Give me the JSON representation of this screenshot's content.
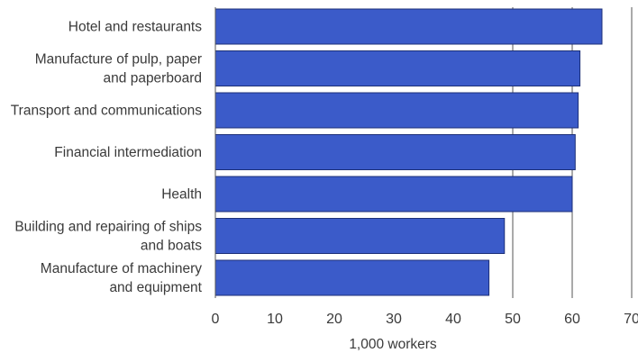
{
  "chart_data": {
    "type": "bar",
    "orientation": "horizontal",
    "categories": [
      "Hotel and restaurants",
      "Manufacture of pulp, paper and paperboard",
      "Transport and communications",
      "Financial intermediation",
      "Health",
      "Building and repairing of ships and boats",
      "Manufacture of machinery and equipment"
    ],
    "category_lines": [
      [
        "Hotel and restaurants"
      ],
      [
        "Manufacture of pulp, paper",
        "and paperboard"
      ],
      [
        "Transport and communications"
      ],
      [
        "Financial intermediation"
      ],
      [
        "Health"
      ],
      [
        "Building and repairing of ships",
        "and boats"
      ],
      [
        "Manufacture of machinery",
        "and equipment"
      ]
    ],
    "values": [
      65,
      61.3,
      61,
      60.5,
      60,
      48.6,
      46
    ],
    "xlim": [
      0,
      70
    ],
    "xticks": [
      0,
      10,
      20,
      30,
      40,
      50,
      60,
      70
    ],
    "xlabel": "1,000 workers",
    "ylabel": "",
    "title": "",
    "grid": "vertical lines at 50, 60, 70",
    "legend": "none",
    "bar_color": "#3b5bc9",
    "bar_edge_color": "#1c2f78"
  }
}
